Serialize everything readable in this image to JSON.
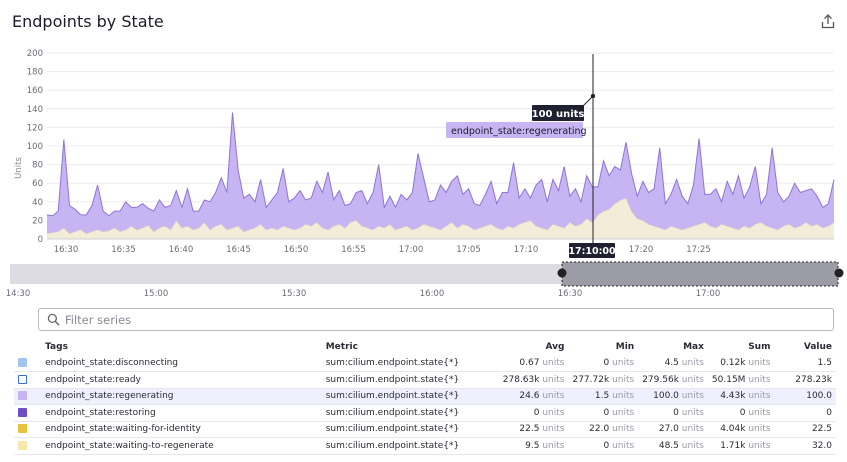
{
  "panel": {
    "title": "Endpoints by State"
  },
  "search": {
    "placeholder": "Filter series"
  },
  "tooltip": {
    "value_label": "100 units",
    "series_label": "endpoint_state:regenerating",
    "time_label": "17:10:00"
  },
  "chart_data": {
    "type": "area",
    "ylabel": "Units",
    "ylim": [
      0,
      200
    ],
    "y_ticks": [
      "0",
      "20",
      "40",
      "60",
      "80",
      "100",
      "120",
      "140",
      "160",
      "180",
      "200"
    ],
    "x_ticks": [
      "16:30",
      "16:35",
      "16:40",
      "16:45",
      "16:50",
      "16:55",
      "17:00",
      "17:05",
      "17:10",
      "17:15",
      "17:20",
      "17:25"
    ],
    "stacked": true,
    "series": [
      {
        "name": "endpoint_state:waiting-to-regenerate",
        "color": "#f2ecd9",
        "values": [
          6,
          7,
          8,
          12,
          6,
          8,
          10,
          6,
          8,
          10,
          8,
          9,
          12,
          8,
          10,
          14,
          10,
          12,
          15,
          8,
          12,
          14,
          10,
          20,
          12,
          14,
          10,
          12,
          18,
          10,
          14,
          16,
          10,
          12,
          14,
          8,
          10,
          12,
          16,
          10,
          12,
          10,
          14,
          12,
          10,
          12,
          16,
          14,
          18,
          12,
          10,
          14,
          16,
          12,
          18,
          20,
          14,
          12,
          10,
          14,
          12,
          16,
          10,
          12,
          14,
          10,
          12,
          16,
          14,
          12,
          10,
          14,
          18,
          12,
          16,
          14,
          10,
          12,
          14,
          16,
          12,
          10,
          14,
          12,
          16,
          18,
          20,
          14,
          12,
          10,
          16,
          14,
          12,
          18,
          14,
          16,
          22,
          18,
          26,
          30,
          32,
          38,
          42,
          44,
          30,
          22,
          20,
          16,
          14,
          12,
          10,
          14,
          12,
          10,
          12,
          14,
          16,
          18,
          14,
          12,
          16,
          14,
          12,
          10,
          14,
          12,
          16,
          18,
          14,
          12,
          10,
          14,
          16,
          12,
          14,
          18,
          14,
          16,
          12,
          14,
          18
        ]
      },
      {
        "name": "endpoint_state:regenerating",
        "color": "#c7b4f2",
        "values": [
          20,
          18,
          22,
          95,
          30,
          24,
          16,
          20,
          28,
          48,
          22,
          16,
          18,
          22,
          30,
          20,
          24,
          26,
          18,
          22,
          30,
          20,
          26,
          32,
          22,
          40,
          20,
          18,
          24,
          30,
          36,
          50,
          40,
          124,
          60,
          36,
          38,
          28,
          48,
          24,
          30,
          40,
          62,
          28,
          34,
          40,
          26,
          30,
          44,
          38,
          62,
          28,
          36,
          24,
          20,
          30,
          38,
          26,
          40,
          66,
          22,
          30,
          24,
          36,
          28,
          40,
          80,
          50,
          26,
          30,
          48,
          36,
          44,
          56,
          32,
          40,
          28,
          24,
          34,
          46,
          26,
          40,
          36,
          70,
          28,
          36,
          24,
          44,
          52,
          30,
          48,
          38,
          66,
          28,
          40,
          24,
          46,
          38,
          30,
          54,
          36,
          40,
          32,
          60,
          40,
          24,
          42,
          34,
          40,
          86,
          28,
          34,
          52,
          36,
          26,
          44,
          92,
          30,
          34,
          42,
          24,
          48,
          36,
          58,
          30,
          44,
          62,
          20,
          34,
          86,
          40,
          26,
          30,
          48,
          36,
          34,
          40,
          30,
          22,
          24,
          46,
          38
        ]
      }
    ]
  },
  "navigator": {
    "ticks": [
      "14:30",
      "15:00",
      "15:30",
      "16:00",
      "16:30",
      "17:00"
    ]
  },
  "legend": {
    "headers": {
      "tags": "Tags",
      "metric": "Metric",
      "avg": "Avg",
      "min": "Min",
      "max": "Max",
      "sum": "Sum",
      "value": "Value"
    },
    "unit": "units",
    "rows": [
      {
        "tag": "endpoint_state:disconnecting",
        "color": "#a3c4f3",
        "hollow": false,
        "metric": "sum:cilium.endpoint.state{*}",
        "avg": "0.67",
        "min": "0",
        "max": "4.5",
        "sum": "0.12k",
        "value": "1.5"
      },
      {
        "tag": "endpoint_state:ready",
        "color": "#ffffff",
        "hollow": true,
        "metric": "sum:cilium.endpoint.state{*}",
        "avg": "278.63k",
        "min": "277.72k",
        "max": "279.56k",
        "sum": "50.15M",
        "value": "278.23k"
      },
      {
        "tag": "endpoint_state:regenerating",
        "color": "#c7b4f2",
        "hollow": false,
        "highlight": true,
        "metric": "sum:cilium.endpoint.state{*}",
        "avg": "24.6",
        "min": "1.5",
        "max": "100.0",
        "sum": "4.43k",
        "value": "100.0"
      },
      {
        "tag": "endpoint_state:restoring",
        "color": "#6a4fc7",
        "hollow": false,
        "metric": "sum:cilium.endpoint.state{*}",
        "avg": "0",
        "min": "0",
        "max": "0",
        "sum": "0",
        "value": "0"
      },
      {
        "tag": "endpoint_state:waiting-for-identity",
        "color": "#e7c23c",
        "hollow": false,
        "metric": "sum:cilium.endpoint.state{*}",
        "avg": "22.5",
        "min": "22.0",
        "max": "27.0",
        "sum": "4.04k",
        "value": "22.5"
      },
      {
        "tag": "endpoint_state:waiting-to-regenerate",
        "color": "#f5e7a8",
        "hollow": false,
        "metric": "sum:cilium.endpoint.state{*}",
        "avg": "9.5",
        "min": "0",
        "max": "48.5",
        "sum": "1.71k",
        "value": "32.0"
      }
    ]
  }
}
